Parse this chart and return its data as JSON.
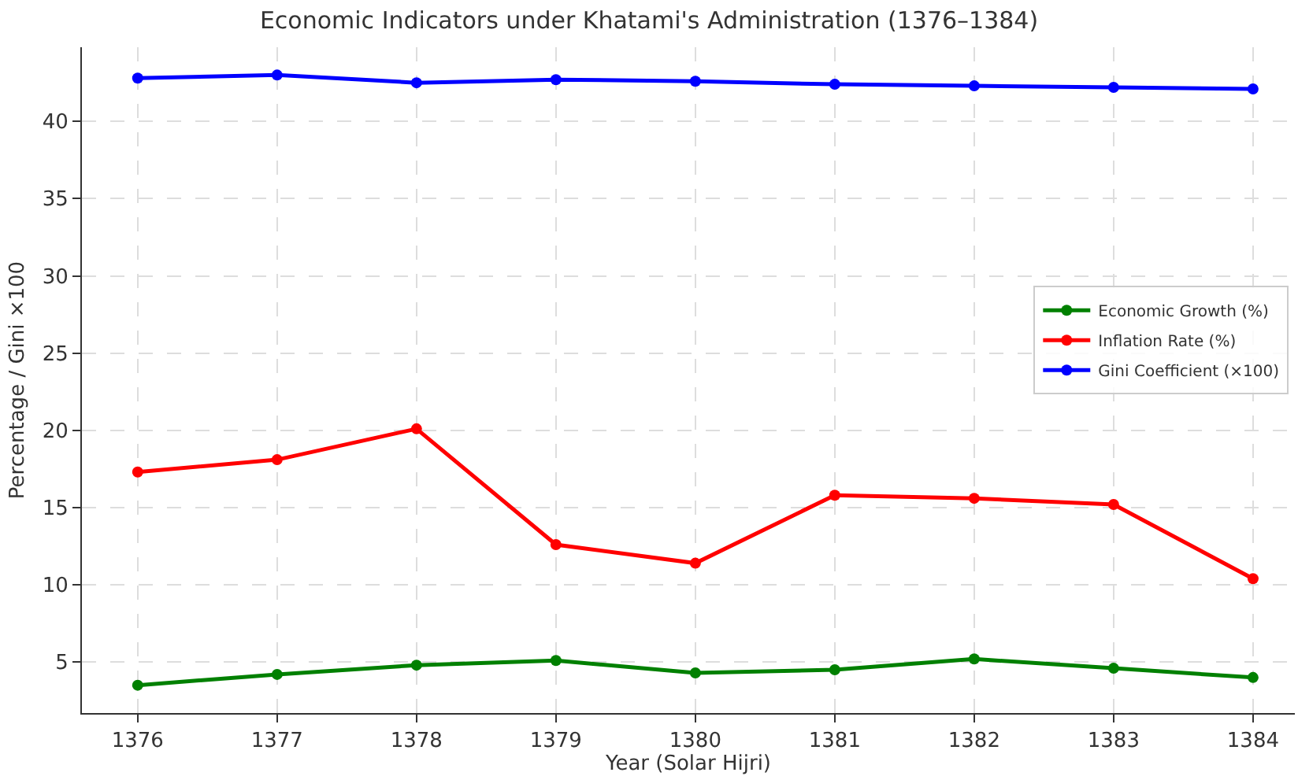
{
  "chart_data": {
    "type": "line",
    "title": "Economic Indicators under Khatami's Administration (1376–1384)",
    "xlabel": "Year (Solar Hijri)",
    "ylabel": "Percentage / Gini ×100",
    "x": [
      1376,
      1377,
      1378,
      1379,
      1380,
      1381,
      1382,
      1383,
      1384
    ],
    "series": [
      {
        "name": "Economic Growth (%)",
        "color": "#008000",
        "values": [
          3.5,
          4.2,
          4.8,
          5.1,
          4.3,
          4.5,
          5.2,
          4.6,
          4.0
        ]
      },
      {
        "name": "Inflation Rate (%)",
        "color": "#ff0000",
        "values": [
          17.3,
          18.1,
          20.1,
          12.6,
          11.4,
          15.8,
          15.6,
          15.2,
          10.4
        ]
      },
      {
        "name": "Gini Coefficient (×100)",
        "color": "#0000ff",
        "values": [
          42.8,
          43.0,
          42.5,
          42.7,
          42.6,
          42.4,
          42.3,
          42.2,
          42.1
        ]
      }
    ],
    "xlim": [
      1375.6,
      1384.3
    ],
    "xticks": [
      1376,
      1377,
      1378,
      1379,
      1380,
      1381,
      1382,
      1383,
      1384
    ],
    "ylim": [
      1.7,
      44.8
    ],
    "yticks": [
      5,
      10,
      15,
      20,
      25,
      30,
      35,
      40
    ],
    "grid": true,
    "legend": "right",
    "marker": "circle",
    "line_style": "solid"
  }
}
